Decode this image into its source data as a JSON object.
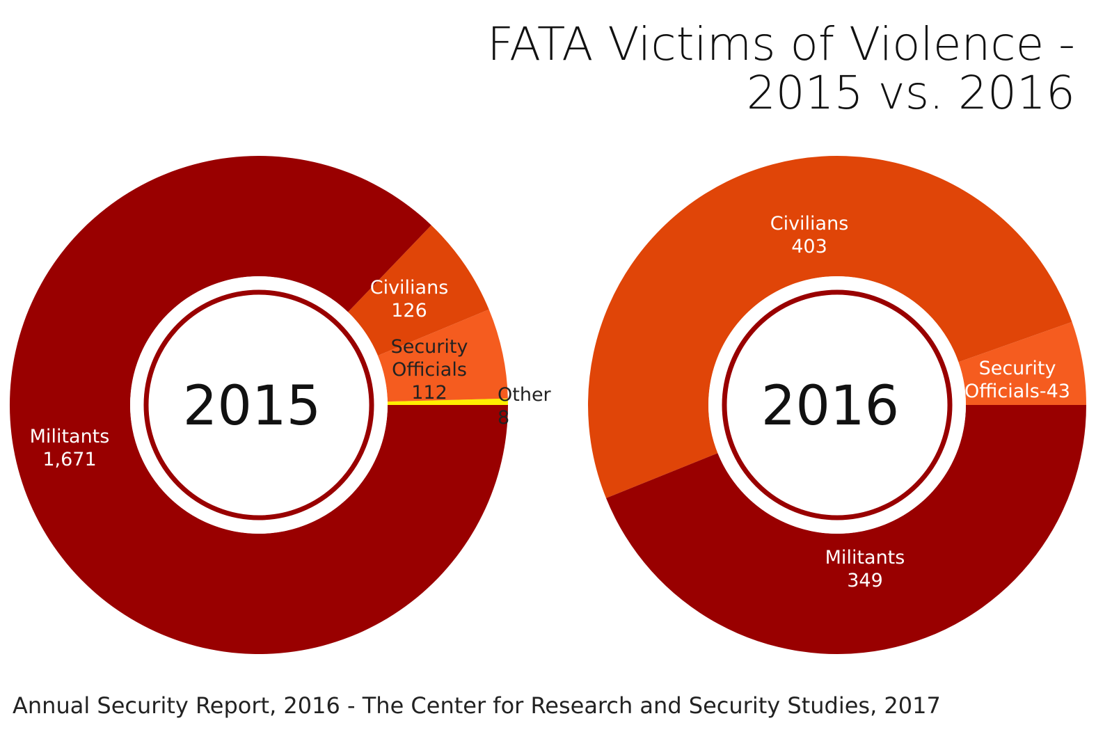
{
  "colors": {
    "militants": "#990000",
    "civilians": "#e04508",
    "security_officials": "#f55c1f",
    "other": "#ffee00",
    "center_ring": "#990000"
  },
  "title_line1": "FATA Victims of Violence -",
  "title_line2": "2015 vs. 2016",
  "source": "Annual Security Report, 2016 - The Center for Research and Security Studies, 2017",
  "chart_data": [
    {
      "type": "pie",
      "donut": true,
      "center_label": "2015",
      "series": [
        {
          "name": "Militants",
          "value": 1671,
          "label_lines": [
            "Militants",
            "1,671"
          ],
          "color_key": "militants"
        },
        {
          "name": "Civilians",
          "value": 126,
          "label_lines": [
            "Civilians",
            "126"
          ],
          "color_key": "civilians"
        },
        {
          "name": "Security Officials",
          "value": 112,
          "label_lines": [
            "Security",
            "Officials",
            "112"
          ],
          "color_key": "security_officials"
        },
        {
          "name": "Other",
          "value": 8,
          "label_lines": [
            "Other",
            "8"
          ],
          "color_key": "other"
        }
      ]
    },
    {
      "type": "pie",
      "donut": true,
      "center_label": "2016",
      "series": [
        {
          "name": "Militants",
          "value": 349,
          "label_lines": [
            "Militants",
            "349"
          ],
          "color_key": "militants"
        },
        {
          "name": "Civilians",
          "value": 403,
          "label_lines": [
            "Civilians",
            "403"
          ],
          "color_key": "civilians"
        },
        {
          "name": "Security Officials",
          "value": 43,
          "label_lines": [
            "Security",
            "Officials-43"
          ],
          "color_key": "security_officials"
        }
      ]
    }
  ]
}
